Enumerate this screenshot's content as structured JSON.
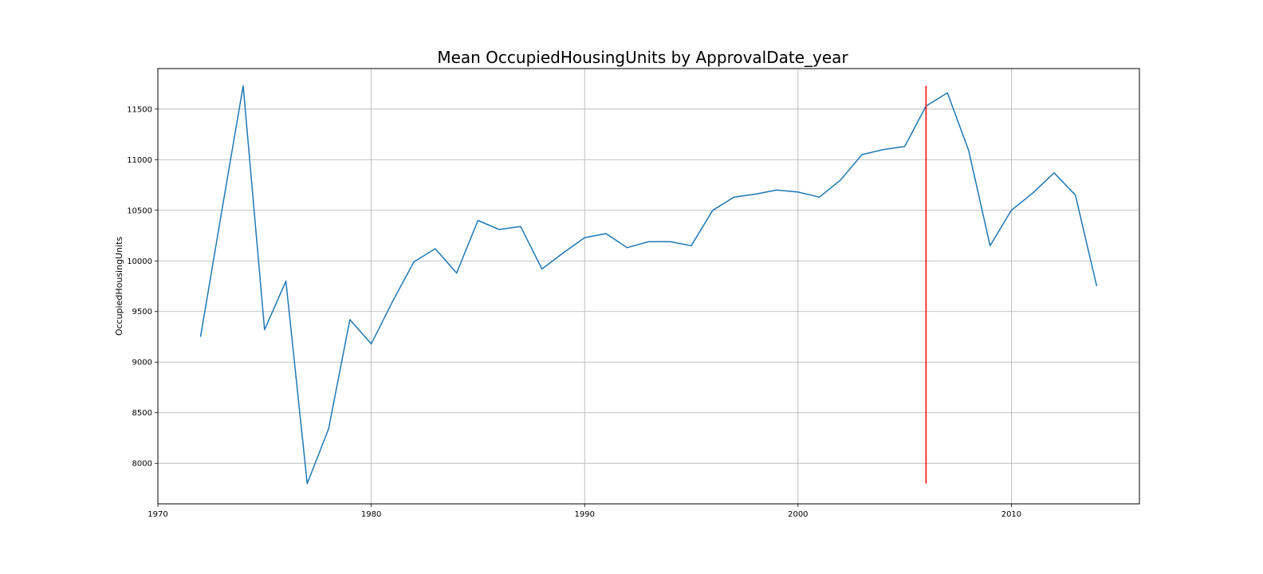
{
  "chart_data": {
    "type": "line",
    "title": "Mean OccupiedHousingUnits by ApprovalDate_year",
    "xlabel": "",
    "ylabel": "OccupiedHousingUnits",
    "xlim": [
      1970,
      2016
    ],
    "ylim": [
      7600,
      11900
    ],
    "xticks": [
      1970,
      1980,
      1990,
      2000,
      2010
    ],
    "yticks": [
      8000,
      8500,
      9000,
      9500,
      10000,
      10500,
      11000,
      11500
    ],
    "grid": true,
    "series": [
      {
        "color": "#1f77b4",
        "x": [
          1972,
          1973,
          1974,
          1975,
          1976,
          1977,
          1978,
          1979,
          1980,
          1981,
          1982,
          1983,
          1984,
          1985,
          1986,
          1987,
          1988,
          1989,
          1990,
          1991,
          1992,
          1993,
          1994,
          1995,
          1996,
          1997,
          1998,
          1999,
          2000,
          2001,
          2002,
          2003,
          2004,
          2005,
          2006,
          2007,
          2008,
          2009,
          2010,
          2011,
          2012,
          2013,
          2014
        ],
        "y": [
          9250,
          10500,
          11730,
          9320,
          9800,
          7800,
          8340,
          9420,
          9180,
          9600,
          9990,
          10120,
          9880,
          10400,
          10310,
          10340,
          9920,
          10080,
          10230,
          10270,
          10130,
          10190,
          10190,
          10150,
          10500,
          10630,
          10660,
          10700,
          10680,
          10630,
          10800,
          11050,
          11100,
          11130,
          11530,
          11660,
          11090,
          10150,
          10500,
          10670,
          10870,
          10650,
          9750
        ]
      }
    ],
    "reference_line": {
      "x": 2006,
      "y": [
        7800,
        11730
      ],
      "color": "#ff0000"
    }
  }
}
